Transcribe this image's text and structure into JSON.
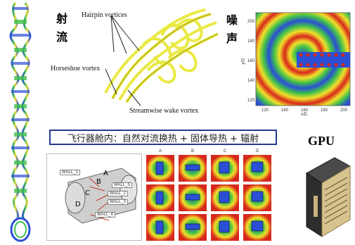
{
  "jet": {
    "label_line1": "射",
    "label_line2": "流",
    "annotations": {
      "hairpin": "Hairpin vortices",
      "horseshoe": "Horseshoe vortex",
      "streamwise": "Streamwise wake vortex"
    }
  },
  "noise": {
    "label_line1": "噪",
    "label_line2": "声",
    "x_axis_label": "x/D",
    "y_axis_label": "y/D",
    "x_ticks": [
      "120",
      "140",
      "160",
      "180",
      "200"
    ],
    "y_ticks": [
      "200",
      "180",
      "160",
      "140",
      "120"
    ]
  },
  "aircraft": {
    "title": "飞行器舱内：自然对流换热 + 固体导热 + 辐射",
    "walls": [
      "WALL_1",
      "WALL_2",
      "WALL_3",
      "WALL_4",
      "WALL_5"
    ],
    "zones": [
      "A",
      "B",
      "C",
      "D"
    ],
    "grid_cols": [
      "A",
      "B",
      "C",
      "D"
    ]
  },
  "gpu": {
    "title": "GPU"
  },
  "colors": {
    "title_border": "#233a8f",
    "field_red": "#d7281c",
    "field_blue": "#2a4fd6",
    "field_green": "#3fc04a",
    "field_yellow": "#f2e02a",
    "vortex_yellow": "#e8e83a"
  }
}
